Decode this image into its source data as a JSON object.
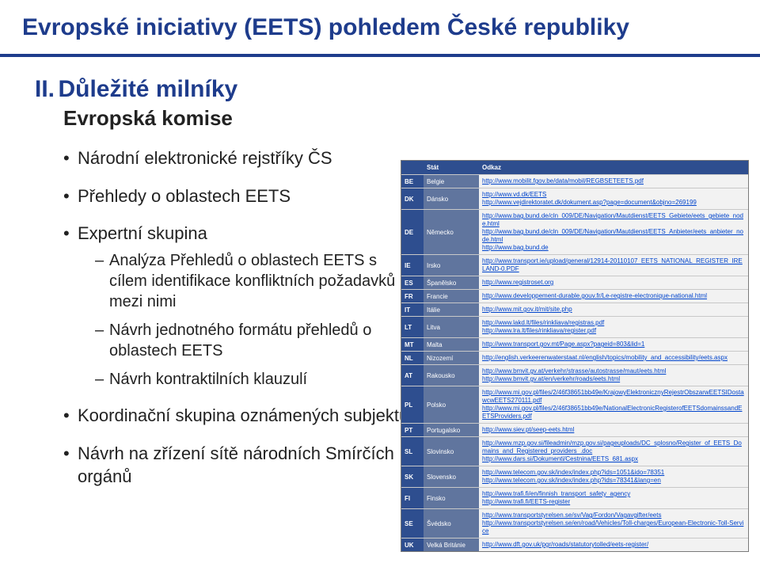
{
  "title": "Evropské iniciativy (EETS) pohledem České republiky",
  "section": {
    "num": "II.",
    "name": "Důležité milníky"
  },
  "subtitle": "Evropská komise",
  "bullets": [
    {
      "text": "Národní elektronické rejstříky ČS"
    },
    {
      "text": "Přehledy o oblastech EETS"
    },
    {
      "text": "Expertní skupina",
      "sub": [
        "Analýza Přehledů o oblastech EETS s cílem identifikace konfliktních požadavků mezi nimi",
        "Návrh jednotného formátu přehledů o oblastech EETS",
        "Návrh kontraktilních klauzulí"
      ]
    },
    {
      "text": "Koordinační skupina oznámených subjektů"
    },
    {
      "text": "Návrh na zřízení sítě národních Smírčích orgánů"
    }
  ],
  "table": {
    "header": {
      "code": "",
      "country": "Stát",
      "link": "Odkaz"
    },
    "rows": [
      {
        "code": "BE",
        "country": "Belgie",
        "links": [
          "http://www.mobilit.fgov.be/data/mobil/REGBSETEETS.pdf"
        ]
      },
      {
        "code": "DK",
        "country": "Dánsko",
        "links": [
          "http://www.vd.dk/EETS",
          "http://www.vejdirektoratet.dk/dokument.asp?page=document&objno=269199"
        ]
      },
      {
        "code": "DE",
        "country": "Německo",
        "links": [
          "http://www.bag.bund.de/cln_009/DE/Navigation/Mautdienst/EETS_Gebiete/eets_gebiete_node.html",
          "http://www.bag.bund.de/cln_009/DE/Navigation/Mautdienst/EETS_Anbieter/eets_anbieter_node.html",
          "http://www.bag.bund.de"
        ]
      },
      {
        "code": "IE",
        "country": "Irsko",
        "links": [
          "http://www.transport.ie/upload/general/12914-20110107_EETS_NATIONAL_REGISTER_IRELAND-0.PDF"
        ]
      },
      {
        "code": "ES",
        "country": "Španělsko",
        "links": [
          "http://www.registroset.org"
        ]
      },
      {
        "code": "FR",
        "country": "Francie",
        "links": [
          "http://www.developpement-durable.gouv.fr/Le-registre-electronique-national.html"
        ]
      },
      {
        "code": "IT",
        "country": "Itálie",
        "links": [
          "http://www.mit.gov.it/mit/site.php"
        ]
      },
      {
        "code": "LT",
        "country": "Litva",
        "links": [
          "http://www.lakd.lt/files/rinkliava/registras.pdf",
          "http://www.lra.lt/files/rinkliava/register.pdf"
        ]
      },
      {
        "code": "MT",
        "country": "Malta",
        "links": [
          "http://www.transport.gov.mt/Page.aspx?pageid=803&lid=1"
        ]
      },
      {
        "code": "NL",
        "country": "Nizozemí",
        "links": [
          "http://english.verkeerenwaterstaat.nl/english/topics/mobility_and_accessibility/eets.aspx"
        ]
      },
      {
        "code": "AT",
        "country": "Rakousko",
        "links": [
          "http://www.bmvit.gv.at/verkehr/strasse/autostrasse/maut/eets.html",
          "http://www.bmvit.gv.at/en/verkehr/roads/eets.html"
        ]
      },
      {
        "code": "PL",
        "country": "Polsko",
        "links": [
          "http://www.mi.gov.pl/files/2/46f38651bb49e/KrajowyElektronicznyRejestrObszarwEETSIDostawcwEETS270111.pdf",
          "http://www.mi.gov.pl/files/2/46f38651bb49e/NationalElectronicRegisterofEETSdomainssandEETSProviders.pdf"
        ]
      },
      {
        "code": "PT",
        "country": "Portugalsko",
        "links": [
          "http://www.siev.pt/seep-eets.html"
        ]
      },
      {
        "code": "SL",
        "country": "Slovinsko",
        "links": [
          "http://www.mzp.gov.si/fileadmin/mzp.gov.si/pageuploads/DC_splosno/Register_of_EETS_Domains_and_Registered_providers_.doc",
          "http://www.dars.si/Dokumenti/Cestnina/EETS_681.aspx"
        ]
      },
      {
        "code": "SK",
        "country": "Slovensko",
        "links": [
          "http://www.telecom.gov.sk/index/index.php?ids=1051&ido=78351",
          "http://www.telecom.gov.sk/index/index.php?ids=78341&lang=en"
        ]
      },
      {
        "code": "FI",
        "country": "Finsko",
        "links": [
          "http://www.trafi.fi/en/finnish_transport_safety_agency",
          "http://www.trafi.fi/EETS-register"
        ]
      },
      {
        "code": "SE",
        "country": "Švédsko",
        "links": [
          "http://www.transportstyrelsen.se/sv/Vag/Fordon/Vagavgifter/eets",
          "http://www.transportstyrelsen.se/en/road/Vehicles/Toll-charges/European-Electronic-Toll-Service"
        ]
      },
      {
        "code": "UK",
        "country": "Velká Británie",
        "links": [
          "http://www.dft.gov.uk/pgr/roads/statutorytolled/eets-register/"
        ]
      }
    ]
  }
}
